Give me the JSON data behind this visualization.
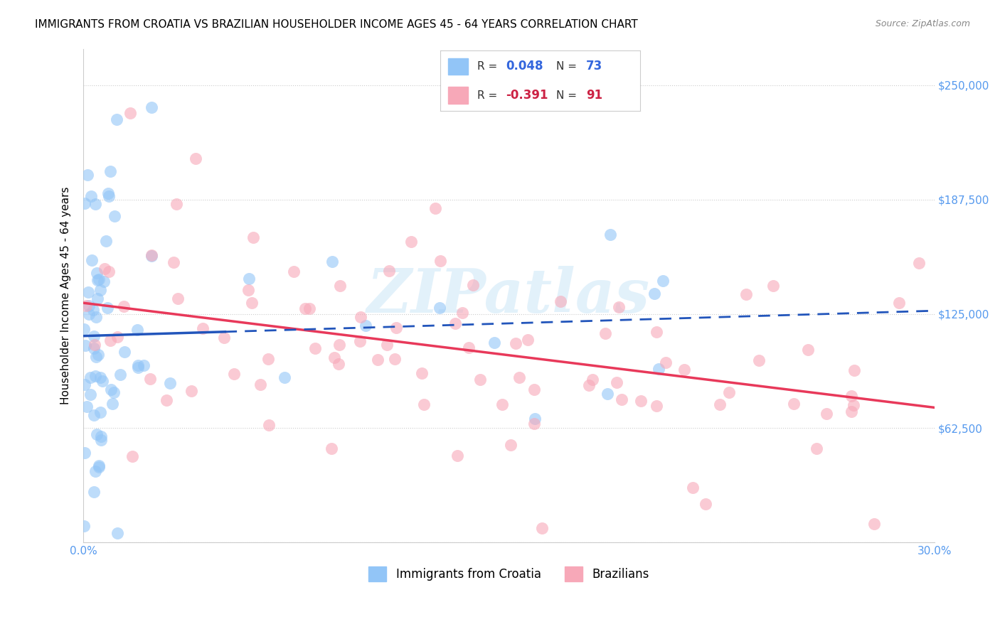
{
  "title": "IMMIGRANTS FROM CROATIA VS BRAZILIAN HOUSEHOLDER INCOME AGES 45 - 64 YEARS CORRELATION CHART",
  "source": "Source: ZipAtlas.com",
  "ylabel": "Householder Income Ages 45 - 64 years",
  "xmin": 0.0,
  "xmax": 0.3,
  "ymin": 0,
  "ymax": 270000,
  "yticks": [
    0,
    62500,
    125000,
    187500,
    250000
  ],
  "ytick_labels": [
    "",
    "$62,500",
    "$125,000",
    "$187,500",
    "$250,000"
  ],
  "xticks": [
    0.0,
    0.05,
    0.1,
    0.15,
    0.2,
    0.25,
    0.3
  ],
  "xtick_labels": [
    "0.0%",
    "",
    "",
    "",
    "",
    "",
    "30.0%"
  ],
  "croatia_R": 0.048,
  "croatia_N": 73,
  "brazil_R": -0.391,
  "brazil_N": 91,
  "croatia_color": "#92c5f7",
  "brazil_color": "#f7a8b8",
  "croatia_line_color": "#2255bb",
  "brazil_line_color": "#e8395a",
  "watermark": "ZIPatlas",
  "legend_label_croatia": "Immigrants from Croatia",
  "legend_label_brazil": "Brazilians",
  "background_color": "#ffffff",
  "grid_color": "#cccccc",
  "title_fontsize": 11,
  "tick_fontsize": 11,
  "ylabel_fontsize": 11,
  "tick_color": "#5599ee"
}
